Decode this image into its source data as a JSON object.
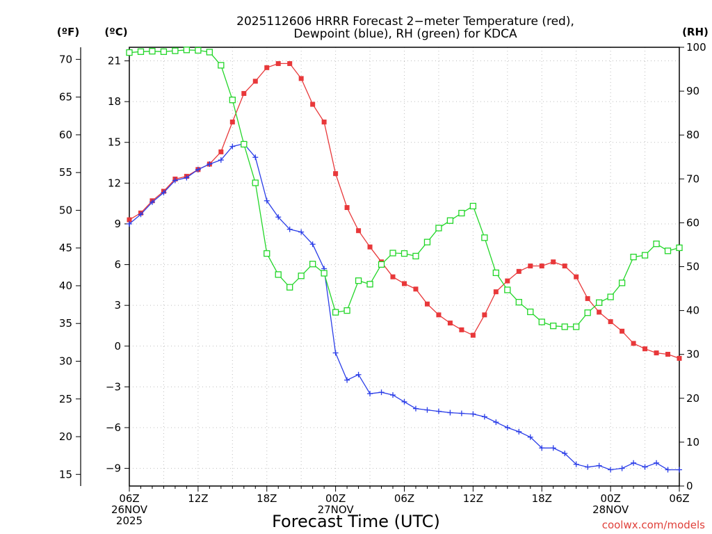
{
  "chart_data": {
    "type": "line",
    "title": "2025112606 HRRR Forecast 2-meter Temperature (red), Dewpoint (blue), RH (green) for KDCA",
    "title_lines": [
      "2025112606 HRRR Forecast 2−meter Temperature (red),",
      "Dewpoint (blue), RH (green) for KDCA"
    ],
    "xlabel": "Forecast Time (UTC)",
    "credit": "coolwx.com/models",
    "x_range_hours": [
      0,
      48
    ],
    "x_ticks": [
      {
        "h": 0,
        "lines": [
          "06Z",
          "26NOV",
          "2025"
        ]
      },
      {
        "h": 6,
        "lines": [
          "12Z"
        ]
      },
      {
        "h": 12,
        "lines": [
          "18Z"
        ]
      },
      {
        "h": 18,
        "lines": [
          "00Z",
          "27NOV"
        ]
      },
      {
        "h": 24,
        "lines": [
          "06Z"
        ]
      },
      {
        "h": 30,
        "lines": [
          "12Z"
        ]
      },
      {
        "h": 36,
        "lines": [
          "18Z"
        ]
      },
      {
        "h": 42,
        "lines": [
          "00Z",
          "28NOV"
        ]
      },
      {
        "h": 48,
        "lines": [
          "06Z"
        ]
      }
    ],
    "axes": {
      "celsius": {
        "unit_label": "(ºC)",
        "range": [
          -10.3,
          22.0
        ],
        "ticks": [
          {
            "v": 21,
            "label": "21"
          },
          {
            "v": 18,
            "label": "18"
          },
          {
            "v": 15,
            "label": "15"
          },
          {
            "v": 12,
            "label": "12"
          },
          {
            "v": 9,
            "label": "9"
          },
          {
            "v": 6,
            "label": "6"
          },
          {
            "v": 3,
            "label": "3"
          },
          {
            "v": 0,
            "label": "0"
          },
          {
            "v": -3,
            "label": "−3"
          },
          {
            "v": -6,
            "label": "−6"
          },
          {
            "v": -9,
            "label": "−9"
          }
        ]
      },
      "fahrenheit": {
        "unit_label": "(ºF)",
        "ticks": [
          {
            "v": 70,
            "label": "70"
          },
          {
            "v": 65,
            "label": "65"
          },
          {
            "v": 60,
            "label": "60"
          },
          {
            "v": 55,
            "label": "55"
          },
          {
            "v": 50,
            "label": "50"
          },
          {
            "v": 45,
            "label": "45"
          },
          {
            "v": 40,
            "label": "40"
          },
          {
            "v": 35,
            "label": "35"
          },
          {
            "v": 30,
            "label": "30"
          },
          {
            "v": 25,
            "label": "25"
          },
          {
            "v": 20,
            "label": "20"
          },
          {
            "v": 15,
            "label": "15"
          }
        ]
      },
      "rh": {
        "unit_label": "(RH)",
        "range": [
          0,
          100
        ],
        "ticks": [
          {
            "v": 100,
            "label": "100"
          },
          {
            "v": 90,
            "label": "90"
          },
          {
            "v": 80,
            "label": "80"
          },
          {
            "v": 70,
            "label": "70"
          },
          {
            "v": 60,
            "label": "60"
          },
          {
            "v": 50,
            "label": "50"
          },
          {
            "v": 40,
            "label": "40"
          },
          {
            "v": 30,
            "label": "30"
          },
          {
            "v": 20,
            "label": "20"
          },
          {
            "v": 10,
            "label": "10"
          },
          {
            "v": 0,
            "label": "0"
          }
        ]
      }
    },
    "series": [
      {
        "name": "Temperature (°C)",
        "color": "#e8383a",
        "marker": "square-filled",
        "axis": "celsius",
        "values": [
          9.3,
          9.8,
          10.7,
          11.4,
          12.3,
          12.5,
          13.0,
          13.4,
          14.3,
          16.5,
          18.6,
          19.5,
          20.5,
          20.8,
          20.8,
          19.7,
          17.8,
          16.5,
          12.7,
          10.2,
          8.5,
          7.3,
          6.2,
          5.1,
          4.6,
          4.2,
          3.1,
          2.3,
          1.7,
          1.2,
          0.8,
          2.3,
          4.0,
          4.8,
          5.5,
          5.9,
          5.9,
          6.2,
          5.9,
          5.1,
          3.5,
          2.5,
          1.8,
          1.1,
          0.2,
          -0.2,
          -0.5,
          -0.6,
          -0.9
        ]
      },
      {
        "name": "Dewpoint (°C)",
        "color": "#2a3de8",
        "marker": "plus",
        "axis": "celsius",
        "values": [
          9.0,
          9.7,
          10.6,
          11.3,
          12.2,
          12.4,
          13.0,
          13.4,
          13.7,
          14.7,
          14.9,
          13.9,
          10.7,
          9.5,
          8.6,
          8.4,
          7.5,
          5.7,
          -0.5,
          -2.5,
          -2.1,
          -3.5,
          -3.4,
          -3.6,
          -4.1,
          -4.6,
          -4.7,
          -4.8,
          -4.9,
          -4.95,
          -5.0,
          -5.2,
          -5.6,
          -6.0,
          -6.3,
          -6.7,
          -7.5,
          -7.5,
          -7.9,
          -8.7,
          -8.9,
          -8.8,
          -9.1,
          -9.0,
          -8.6,
          -8.9,
          -8.6,
          -9.1,
          -9.1
        ]
      },
      {
        "name": "RH (%)",
        "color": "#22d628",
        "marker": "square-open",
        "axis": "rh",
        "values": [
          98.8,
          99.0,
          99.1,
          99.0,
          99.2,
          99.4,
          99.3,
          98.9,
          95.9,
          88.0,
          77.9,
          69.1,
          53.0,
          48.2,
          45.3,
          47.9,
          50.6,
          48.5,
          39.6,
          40.0,
          46.8,
          46.0,
          50.5,
          53.1,
          53.0,
          52.4,
          55.6,
          58.8,
          60.5,
          62.2,
          63.8,
          56.6,
          48.6,
          44.7,
          41.9,
          39.7,
          37.4,
          36.5,
          36.3,
          36.3,
          39.5,
          41.8,
          43.1,
          46.3,
          52.2,
          52.6,
          55.2,
          53.6,
          54.3
        ]
      }
    ]
  }
}
